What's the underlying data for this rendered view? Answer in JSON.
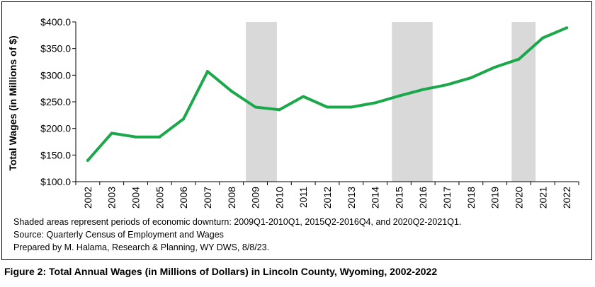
{
  "chart_data": {
    "type": "line",
    "title": "",
    "xlabel": "",
    "ylabel": "Total Wages (in Millions of $)",
    "x": [
      "2002",
      "2003",
      "2004",
      "2005",
      "2006",
      "2007",
      "2008",
      "2009",
      "2010",
      "2011",
      "2012",
      "2013",
      "2014",
      "2015",
      "2016",
      "2017",
      "2018",
      "2019",
      "2020",
      "2021",
      "2022"
    ],
    "series": [
      {
        "values": [
          140,
          191,
          184,
          184,
          218,
          307,
          270,
          240,
          235,
          260,
          240,
          240,
          248,
          261,
          273,
          282,
          295,
          315,
          330,
          370,
          389
        ]
      }
    ],
    "ylim": [
      100,
      400
    ],
    "yticks": [
      "$100.0",
      "$150.0",
      "$200.0",
      "$250.0",
      "$300.0",
      "$350.0",
      "$400.0"
    ],
    "ytick_values": [
      100,
      150,
      200,
      250,
      300,
      350,
      400
    ],
    "grid": false,
    "line_color": "#1aa84a",
    "shade_color": "#d9d9d9",
    "shaded_periods": [
      {
        "start": "2009Q1",
        "end": "2010Q1",
        "x_from": 2008.6,
        "x_to": 2009.9
      },
      {
        "start": "2015Q2",
        "end": "2016Q4",
        "x_from": 2014.7,
        "x_to": 2016.4
      },
      {
        "start": "2020Q2",
        "end": "2021Q1",
        "x_from": 2019.7,
        "x_to": 2020.7
      }
    ]
  },
  "notes": {
    "shading": "Shaded areas represent periods of economic downturn: 2009Q1-2010Q1, 2015Q2-2016Q4, and 2020Q2-2021Q1.",
    "source": "Source: Quarterly Census of Employment and Wages",
    "prepared": "Prepared by M. Halama, Research & Planning, WY DWS, 8/8/23."
  },
  "caption": "Figure 2: Total Annual Wages (in Millions of Dollars) in Lincoln County, Wyoming, 2002-2022"
}
